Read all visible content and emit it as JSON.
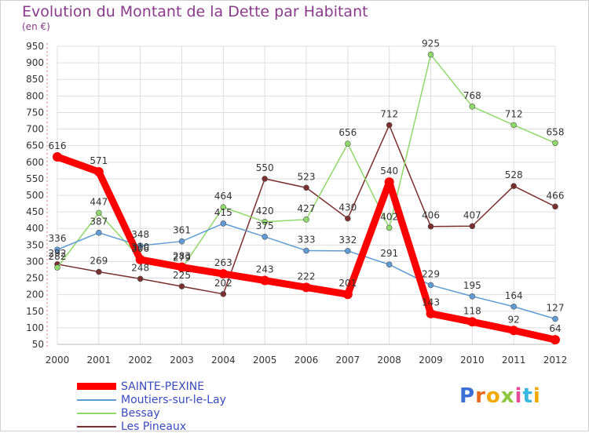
{
  "title": "Evolution du Montant de la Dette par Habitant",
  "unit": "(en €)",
  "logo_text": "Proxiti",
  "chart_data": {
    "type": "line",
    "title": "Evolution du Montant de la Dette par Habitant",
    "ylabel": "(en €)",
    "ylim": [
      50,
      950
    ],
    "y_ticks": [
      "50",
      "100",
      "150",
      "200",
      "250",
      "300",
      "350",
      "400",
      "450",
      "500",
      "550",
      "600",
      "650",
      "700",
      "750",
      "800",
      "850",
      "900",
      "950"
    ],
    "x": [
      "2000",
      "2001",
      "2002",
      "2003",
      "2004",
      "2005",
      "2006",
      "2007",
      "2008",
      "2009",
      "2010",
      "2011",
      "2012"
    ],
    "grid": true,
    "legend_position": "bottom-left",
    "series": [
      {
        "name": "SAINTE-PEXINE",
        "color": "#ff0000",
        "values": [
          616,
          571,
          306,
          283,
          263,
          243,
          222,
          201,
          540,
          143,
          118,
          92,
          64
        ],
        "labels": [
          "616",
          "571",
          "306",
          "283",
          "263",
          "243",
          "222",
          "201",
          "540",
          "143",
          "118",
          "92",
          "64"
        ]
      },
      {
        "name": "Moutiers-sur-le-Lay",
        "color": "#5f9bd5",
        "values": [
          336,
          387,
          348,
          361,
          415,
          375,
          333,
          332,
          291,
          229,
          195,
          164,
          127
        ],
        "labels": [
          "336",
          "387",
          "348",
          "361",
          "415",
          "375",
          "333",
          "332",
          "291",
          "229",
          "195",
          "164",
          "127"
        ]
      },
      {
        "name": "Bessay",
        "color": "#8fd86a",
        "values": [
          282,
          447,
          310,
          279,
          464,
          420,
          427,
          656,
          402,
          925,
          768,
          712,
          658
        ],
        "labels": [
          "282",
          "447",
          "310",
          "279",
          "464",
          "420",
          "427",
          "656",
          "402",
          "925",
          "768",
          "712",
          "658"
        ]
      },
      {
        "name": "Les Pineaux",
        "color": "#7a2e2e",
        "values": [
          292,
          269,
          248,
          225,
          202,
          550,
          523,
          430,
          712,
          406,
          407,
          528,
          466
        ],
        "labels": [
          "292",
          "269",
          "248",
          "225",
          "202",
          "550",
          "523",
          "430",
          "712",
          "406",
          "407",
          "528",
          "466"
        ]
      }
    ]
  }
}
